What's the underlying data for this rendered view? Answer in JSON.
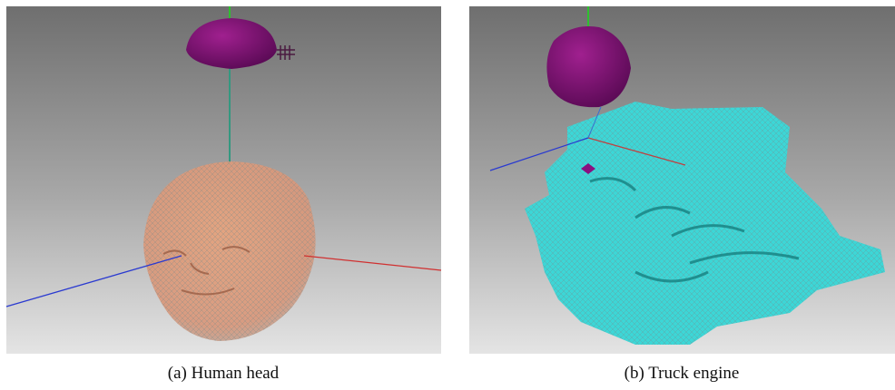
{
  "figure": {
    "panels": [
      {
        "caption": "(a) Human head"
      },
      {
        "caption": "(b) Truck engine"
      }
    ]
  }
}
